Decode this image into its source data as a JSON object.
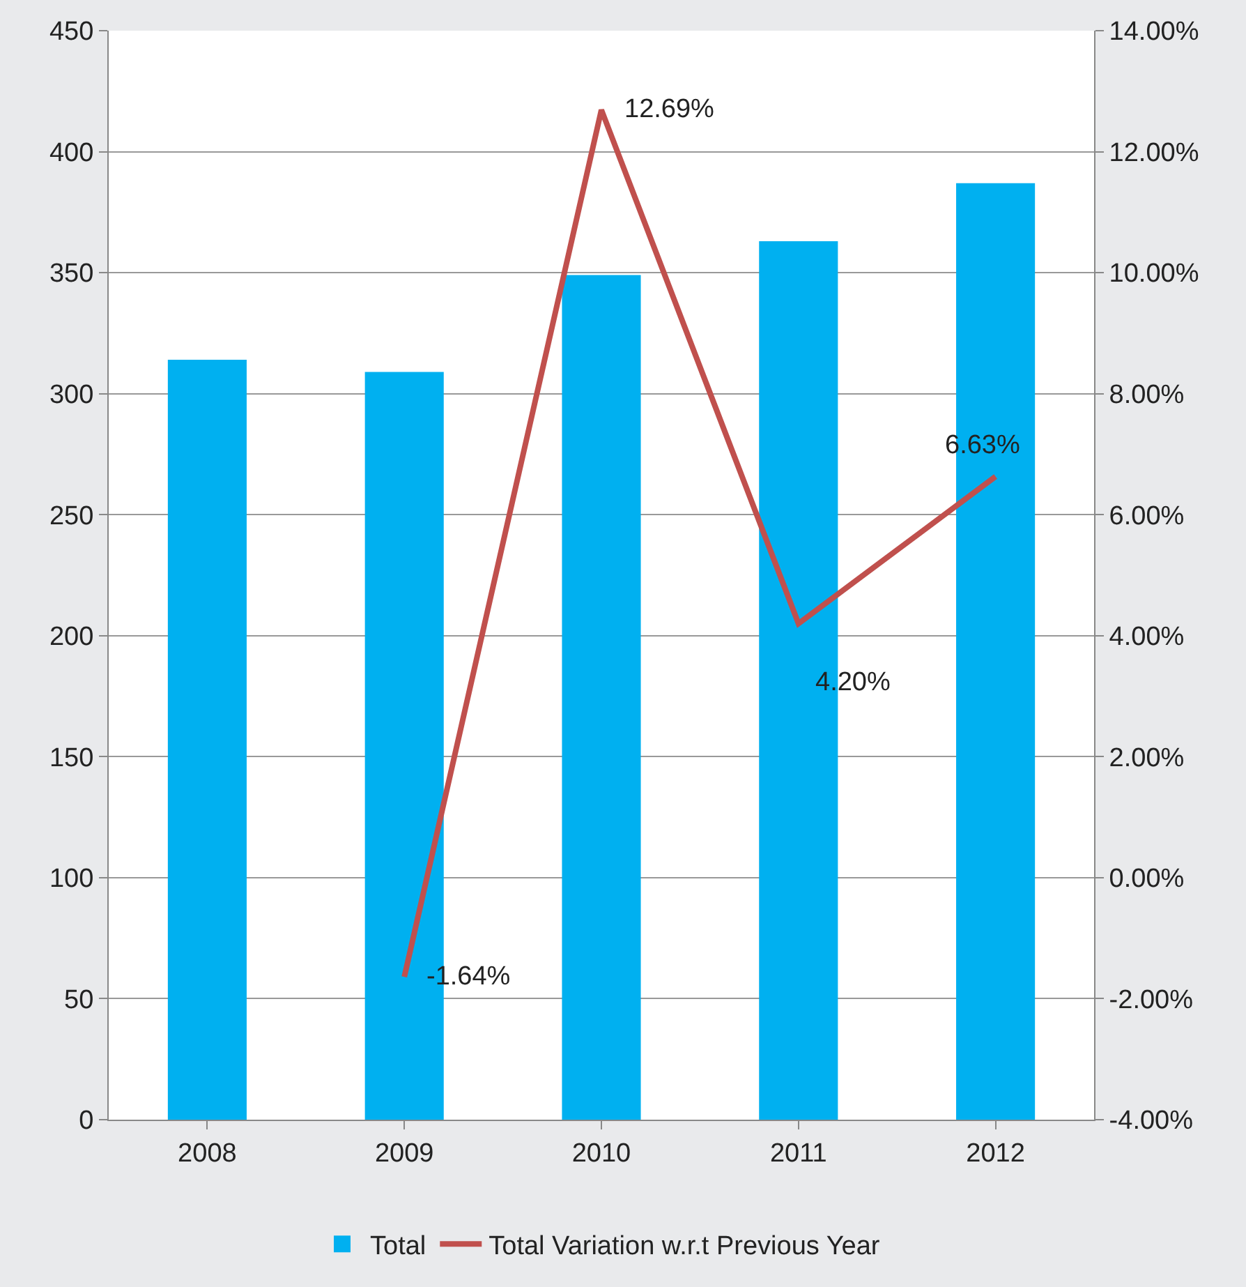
{
  "chart_data": {
    "type": "bar",
    "categories": [
      "2008",
      "2009",
      "2010",
      "2011",
      "2012"
    ],
    "series": [
      {
        "name": "Total",
        "color": "#00b0f0",
        "values": [
          314,
          309,
          349,
          363,
          387
        ]
      },
      {
        "name": "Total Variation w.r.t Previous Year",
        "type": "line",
        "axis": "y2",
        "color": "#c0504d",
        "values": [
          null,
          -1.64,
          12.69,
          4.2,
          6.63
        ],
        "value_labels": [
          null,
          "-1.64%",
          "12.69%",
          "4.20%",
          "6.63%"
        ]
      }
    ],
    "ylim": [
      0,
      450
    ],
    "yticks": [
      0,
      50,
      100,
      150,
      200,
      250,
      300,
      350,
      400,
      450
    ],
    "y2lim": [
      -4,
      14
    ],
    "y2ticks": [
      {
        "value": -4,
        "label": "-4.00%"
      },
      {
        "value": -2,
        "label": "-2.00%"
      },
      {
        "value": 0,
        "label": "0.00%"
      },
      {
        "value": 2,
        "label": "2.00%"
      },
      {
        "value": 4,
        "label": "4.00%"
      },
      {
        "value": 6,
        "label": "6.00%"
      },
      {
        "value": 8,
        "label": "8.00%"
      },
      {
        "value": 10,
        "label": "10.00%"
      },
      {
        "value": 12,
        "label": "12.00%"
      },
      {
        "value": 14,
        "label": "14.00%"
      }
    ],
    "grid": "y",
    "legend": "bottom",
    "marker": "none",
    "line_style": "solid"
  }
}
